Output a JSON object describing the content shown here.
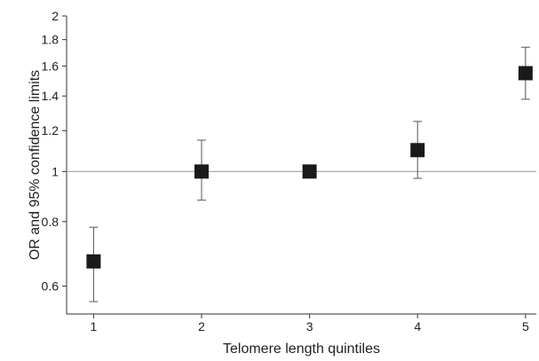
{
  "chart_data": {
    "type": "scatter",
    "xlabel": "Telomere length quintiles",
    "ylabel": "OR and 95% confidence limits",
    "x_ticks": [
      "1",
      "2",
      "3",
      "4",
      "5"
    ],
    "y_ticks": [
      "0.6",
      "0.8",
      "1",
      "1.2",
      "1.4",
      "1.6",
      "1.8",
      "2"
    ],
    "y_scale": "log",
    "xlim": [
      0.75,
      5.1
    ],
    "ylim": [
      0.53,
      2.0
    ],
    "reference_line": 1,
    "grid": false,
    "marker": "square",
    "marker_color": "#1a1a1a",
    "points": [
      {
        "x": 1,
        "or": 0.67,
        "lower": 0.56,
        "upper": 0.78
      },
      {
        "x": 2,
        "or": 1.0,
        "lower": 0.88,
        "upper": 1.15
      },
      {
        "x": 3,
        "or": 1.0,
        "lower": 1.0,
        "upper": 1.0
      },
      {
        "x": 4,
        "or": 1.1,
        "lower": 0.97,
        "upper": 1.25
      },
      {
        "x": 5,
        "or": 1.55,
        "lower": 1.38,
        "upper": 1.74
      }
    ]
  }
}
